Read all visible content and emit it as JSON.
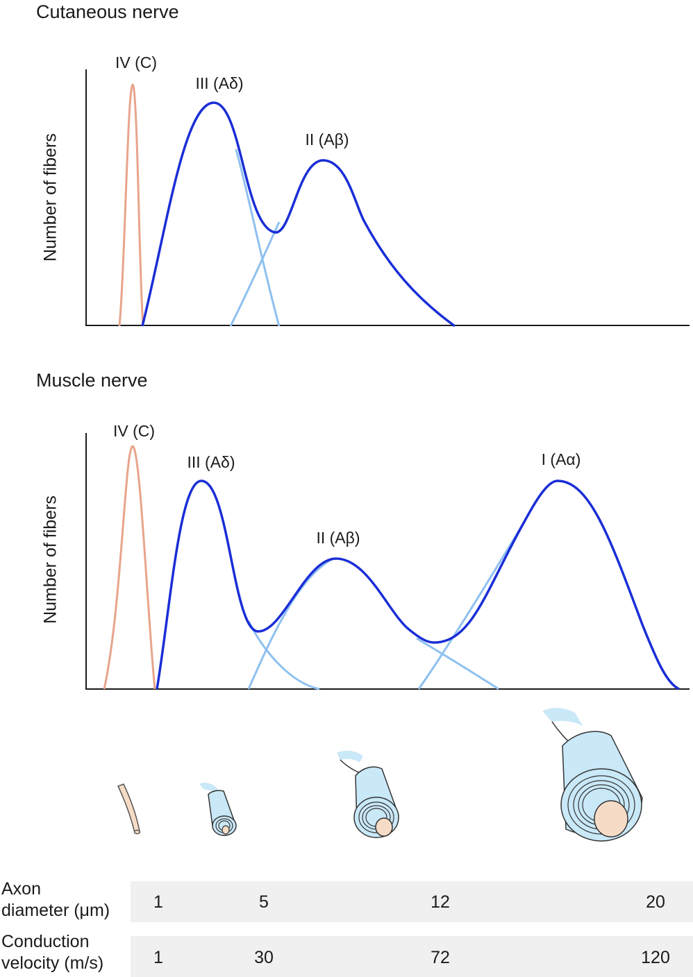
{
  "panels": {
    "cutaneous": {
      "title": "Cutaneous nerve",
      "ylabel": "Number of fibers",
      "labels": {
        "iv_c": "IV (C)",
        "iii_ad": "III (Aδ)",
        "ii_ab": "II (Aβ)"
      }
    },
    "muscle": {
      "title": "Muscle nerve",
      "ylabel": "Number of fibers",
      "labels": {
        "iv_c": "IV (C)",
        "iii_ad": "III (Aδ)",
        "ii_ab": "II (Aβ)",
        "i_aa": "I (Aα)"
      }
    }
  },
  "table": {
    "rows": [
      {
        "label_line1": "Axon",
        "label_line2": "diameter (μm)",
        "values": [
          "1",
          "5",
          "12",
          "20"
        ]
      },
      {
        "label_line1": "Conduction",
        "label_line2": "velocity (m/s)",
        "values": [
          "1",
          "30",
          "72",
          "120"
        ]
      }
    ]
  },
  "colors": {
    "envelope": "#1a2ed6",
    "component": "#8ec0f0",
    "unmyelinated": "#e8a48c",
    "myelin_fill": "#c9e8f8",
    "axon_fill": "#f6dcc6",
    "table_band": "#f0f0f0"
  },
  "icons": [
    "unmyelinated-fiber-icon",
    "small-myelinated-fiber-icon",
    "medium-myelinated-fiber-icon",
    "large-myelinated-fiber-icon"
  ]
}
